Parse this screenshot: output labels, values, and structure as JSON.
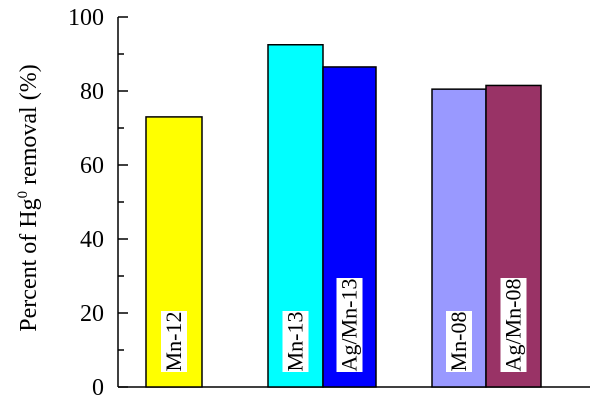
{
  "chart_data": {
    "type": "bar",
    "ylabel_parts": {
      "before": "Percent of Hg",
      "superscript": "0",
      "after": " removal (%)"
    },
    "ylim": [
      0,
      100
    ],
    "yticks": [
      "0",
      "20",
      "40",
      "60",
      "80",
      "100"
    ],
    "grid": false,
    "bars": [
      {
        "label": "Mn-12",
        "value": 73,
        "color": "#ffff00"
      },
      {
        "label": "Mn-13",
        "value": 92.5,
        "color": "#00ffff"
      },
      {
        "label": "Ag/Mn-13",
        "value": 86.5,
        "color": "#0000ff"
      },
      {
        "label": "Mn-08",
        "value": 80.5,
        "color": "#9999ff"
      },
      {
        "label": "Ag/Mn-08",
        "value": 81.5,
        "color": "#993366"
      }
    ]
  }
}
